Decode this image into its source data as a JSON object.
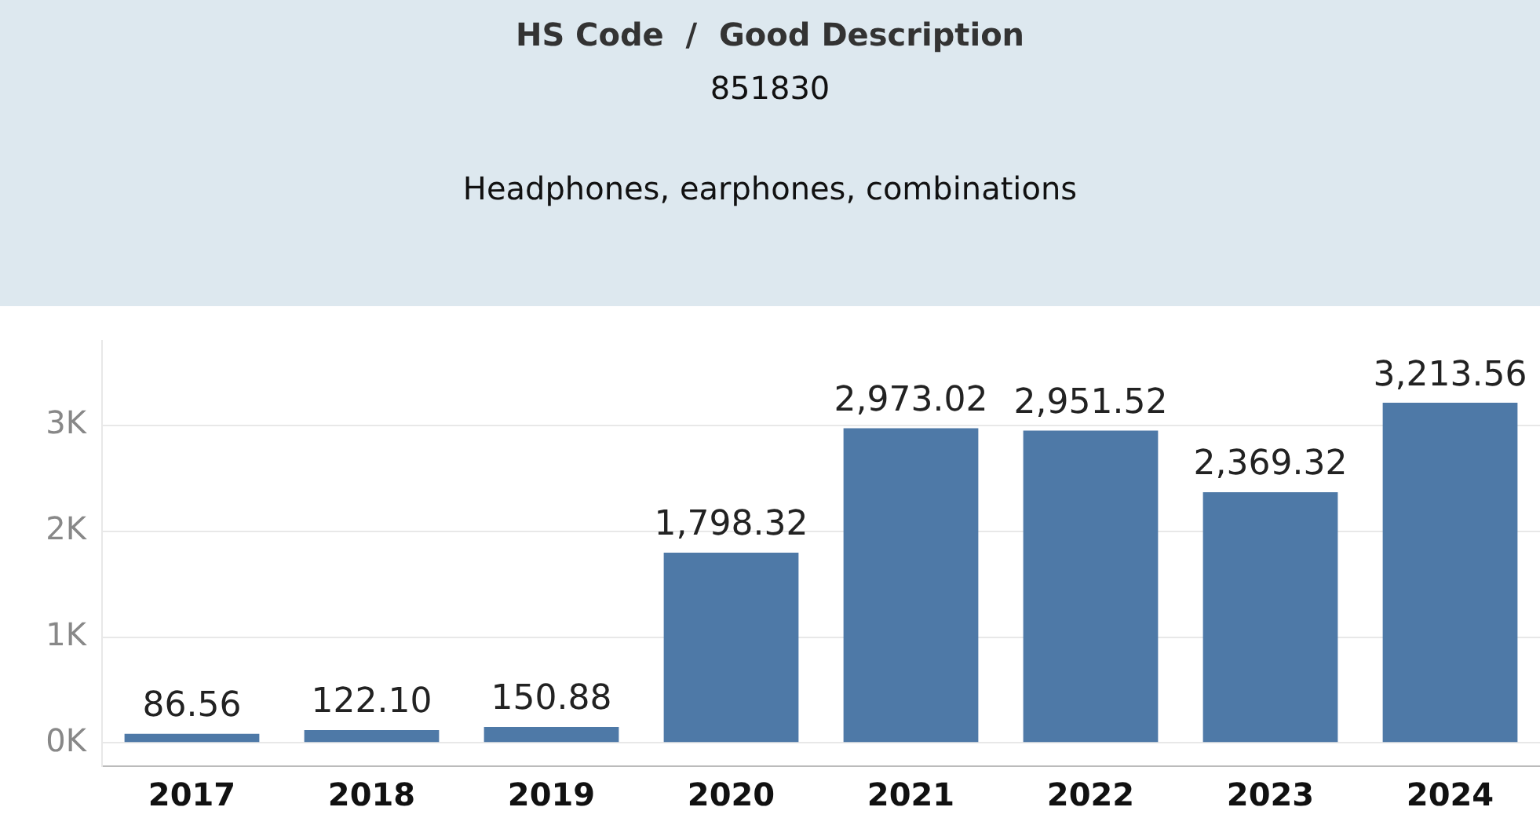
{
  "chart_data": {
    "type": "bar",
    "title": "HS Code  /  Good Description",
    "subtitle": "851830",
    "annotations": [
      "Headphones, earphones, combinations"
    ],
    "categories": [
      "2017",
      "2018",
      "2019",
      "2020",
      "2021",
      "2022",
      "2023",
      "2024"
    ],
    "values": [
      86.56,
      122.1,
      150.88,
      1798.32,
      2973.02,
      2951.52,
      2369.32,
      3213.56
    ],
    "value_labels": [
      "86.56",
      "122.10",
      "150.88",
      "1,798.32",
      "2,973.02",
      "2,951.52",
      "2,369.32",
      "3,213.56"
    ],
    "color": "#4e79a7",
    "ylim": [
      -220,
      3800
    ],
    "yticks": [
      {
        "value": 0,
        "label": "0K"
      },
      {
        "value": 1000,
        "label": "1K"
      },
      {
        "value": 2000,
        "label": "2K"
      },
      {
        "value": 3000,
        "label": "3K"
      }
    ],
    "grid": "y",
    "legend": false
  }
}
